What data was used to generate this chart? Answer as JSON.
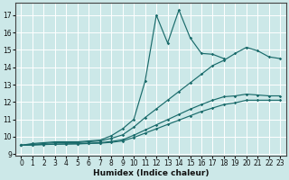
{
  "xlabel": "Humidex (Indice chaleur)",
  "bg_color": "#cce8e8",
  "grid_color": "#ffffff",
  "line_color": "#1a6b6b",
  "xlim": [
    -0.5,
    23.5
  ],
  "ylim": [
    8.9,
    17.7
  ],
  "yticks": [
    9,
    10,
    11,
    12,
    13,
    14,
    15,
    16,
    17
  ],
  "xticks": [
    0,
    1,
    2,
    3,
    4,
    5,
    6,
    7,
    8,
    9,
    10,
    11,
    12,
    13,
    14,
    15,
    16,
    17,
    18,
    19,
    20,
    21,
    22,
    23
  ],
  "line1_x": [
    0,
    1,
    2,
    3,
    4,
    5,
    6,
    7,
    8,
    9,
    10,
    11,
    12,
    13,
    14,
    15,
    16,
    17,
    18
  ],
  "line1_y": [
    9.5,
    9.6,
    9.65,
    9.7,
    9.7,
    9.7,
    9.75,
    9.8,
    10.05,
    10.45,
    11.0,
    13.2,
    17.0,
    15.4,
    17.3,
    15.7,
    14.8,
    14.75,
    14.5
  ],
  "line2_x": [
    0,
    1,
    2,
    3,
    4,
    5,
    6,
    7,
    8,
    9,
    10,
    11,
    12,
    13,
    14,
    15,
    16,
    17,
    18,
    19,
    20,
    21,
    22,
    23
  ],
  "line2_y": [
    9.5,
    9.55,
    9.6,
    9.65,
    9.65,
    9.65,
    9.7,
    9.75,
    9.9,
    10.1,
    10.55,
    11.1,
    11.6,
    12.1,
    12.6,
    13.1,
    13.6,
    14.1,
    14.4,
    14.8,
    15.15,
    14.95,
    14.6,
    14.5
  ],
  "line3_x": [
    0,
    1,
    2,
    3,
    4,
    5,
    6,
    7,
    8,
    9,
    10,
    11,
    12,
    13,
    14,
    15,
    16,
    17,
    18,
    19,
    20,
    21,
    22,
    23
  ],
  "line3_y": [
    9.5,
    9.52,
    9.55,
    9.57,
    9.58,
    9.59,
    9.62,
    9.65,
    9.72,
    9.82,
    10.08,
    10.38,
    10.68,
    10.98,
    11.28,
    11.58,
    11.85,
    12.1,
    12.3,
    12.35,
    12.45,
    12.4,
    12.35,
    12.35
  ],
  "line4_x": [
    0,
    1,
    2,
    3,
    4,
    5,
    6,
    7,
    8,
    9,
    10,
    11,
    12,
    13,
    14,
    15,
    16,
    17,
    18,
    19,
    20,
    21,
    22,
    23
  ],
  "line4_y": [
    9.5,
    9.52,
    9.54,
    9.56,
    9.57,
    9.58,
    9.6,
    9.62,
    9.67,
    9.75,
    9.95,
    10.2,
    10.45,
    10.7,
    10.95,
    11.2,
    11.45,
    11.65,
    11.85,
    11.95,
    12.1,
    12.1,
    12.1,
    12.1
  ]
}
